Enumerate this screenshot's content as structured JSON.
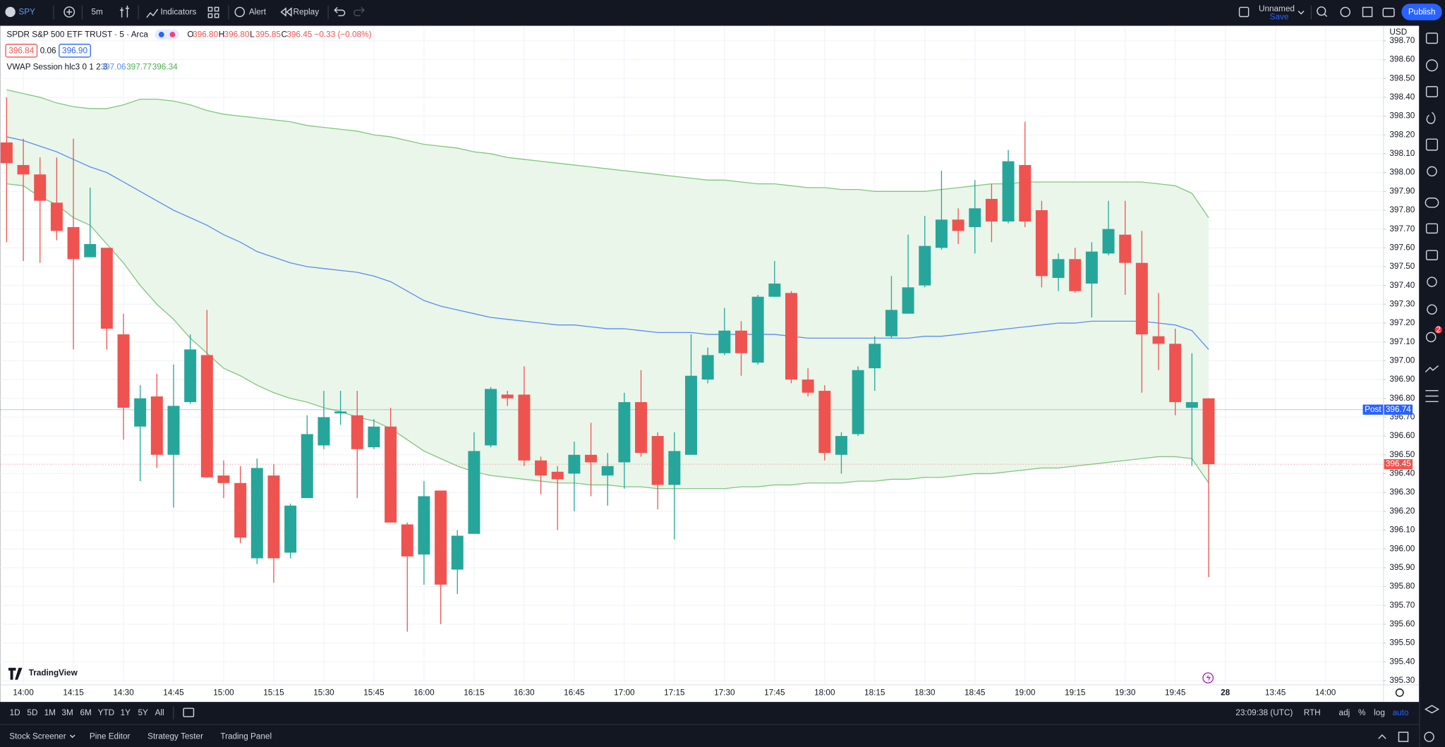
{
  "toolbar": {
    "symbol": "SPY",
    "interval": "5m",
    "indicators": "Indicators",
    "alert": "Alert",
    "replay": "Replay",
    "layout_name": "Unnamed",
    "save": "Save",
    "publish": "Publish"
  },
  "legend": {
    "title": "SPDR S&P 500 ETF TRUST · 5 · Arca",
    "ohlc": [
      {
        "label": "O",
        "value": "396.80"
      },
      {
        "label": "H",
        "value": "396.80"
      },
      {
        "label": "L",
        "value": "395.85"
      },
      {
        "label": "C",
        "value": "396.45"
      }
    ],
    "change": "−0.33 (−0.08%)",
    "bid": "396.84",
    "spread": "0.06",
    "ask": "396.90"
  },
  "indicator": {
    "name": "VWAP Session hlc3 0 1 2 3",
    "values": [
      "397.06",
      "397.77",
      "396.34"
    ]
  },
  "currency": "USD",
  "watermark": "TradingView",
  "notifications": "2",
  "ranges": [
    "1D",
    "5D",
    "1M",
    "3M",
    "6M",
    "YTD",
    "1Y",
    "5Y",
    "All"
  ],
  "status": {
    "clock": "23:09:38 (UTC)",
    "session": "RTH",
    "adj": "adj",
    "percent": "%",
    "log": "log",
    "auto": "auto"
  },
  "bottom_tabs": [
    "Stock Screener",
    "Pine Editor",
    "Strategy Tester",
    "Trading Panel"
  ],
  "chart_data": {
    "type": "candlestick",
    "categories": [
      null,
      "14:00",
      null,
      null,
      "14:15",
      null,
      null,
      "14:30",
      null,
      null,
      "14:45",
      null,
      null,
      "15:00",
      null,
      null,
      "15:15",
      null,
      null,
      "15:30",
      null,
      null,
      "15:45",
      null,
      null,
      "16:00",
      null,
      null,
      "16:15",
      null,
      null,
      "16:30",
      null,
      null,
      "16:45",
      null,
      null,
      "17:00",
      null,
      null,
      "17:15",
      null,
      null,
      "17:30",
      null,
      null,
      "17:45",
      null,
      null,
      "18:00",
      null,
      null,
      "18:15",
      null,
      null,
      "18:30",
      null,
      null,
      "18:45",
      null,
      null,
      "19:00",
      null,
      null,
      "19:15",
      null,
      null,
      "19:30",
      null,
      null,
      "19:45",
      null,
      null,
      "28",
      null,
      null,
      "13:45",
      null,
      null,
      "14:00"
    ],
    "open": [
      398.16,
      398.04,
      397.99,
      397.84,
      397.71,
      397.55,
      397.6,
      397.14,
      396.65,
      396.81,
      396.5,
      396.78,
      397.03,
      396.39,
      396.35,
      395.95,
      396.39,
      395.98,
      396.27,
      396.55,
      396.72,
      396.71,
      396.54,
      396.65,
      396.13,
      395.97,
      396.31,
      395.89,
      396.08,
      396.55,
      396.82,
      396.82,
      396.47,
      396.41,
      396.4,
      396.5,
      396.39,
      396.46,
      396.78,
      396.6,
      396.34,
      396.5,
      396.9,
      397.04,
      397.16,
      396.99,
      397.34,
      397.36,
      396.9,
      396.84,
      396.5,
      396.61,
      396.96,
      397.13,
      397.25,
      397.4,
      397.6,
      397.75,
      397.71,
      397.86,
      397.74,
      398.04,
      397.8,
      397.44,
      397.54,
      397.41,
      397.57,
      397.67,
      397.52,
      397.13,
      397.09,
      396.75,
      396.8,
      null,
      null,
      null,
      null,
      null,
      null,
      null
    ],
    "high": [
      398.4,
      398.18,
      398.08,
      398.08,
      398.18,
      397.92,
      397.6,
      397.25,
      396.87,
      396.93,
      396.98,
      397.14,
      397.27,
      396.47,
      396.44,
      396.48,
      396.45,
      396.24,
      396.71,
      396.84,
      396.84,
      396.84,
      396.69,
      396.75,
      396.14,
      396.36,
      396.31,
      396.1,
      396.62,
      396.86,
      396.84,
      396.97,
      396.49,
      396.44,
      396.57,
      396.67,
      396.51,
      396.83,
      396.95,
      396.62,
      396.62,
      397.14,
      397.07,
      397.28,
      397.21,
      397.35,
      397.53,
      397.37,
      396.96,
      396.87,
      396.62,
      396.97,
      397.13,
      397.45,
      397.67,
      397.77,
      398.01,
      397.81,
      397.96,
      397.94,
      398.12,
      398.27,
      397.85,
      397.57,
      397.6,
      397.63,
      397.85,
      397.85,
      397.69,
      397.36,
      397.17,
      397.04,
      396.8,
      null,
      null,
      null,
      null,
      null,
      null,
      null
    ],
    "low": [
      397.63,
      397.53,
      397.52,
      397.64,
      397.06,
      397.55,
      397.06,
      396.58,
      396.36,
      396.43,
      396.22,
      396.77,
      396.38,
      396.27,
      396.03,
      395.92,
      395.82,
      395.95,
      396.27,
      396.53,
      396.66,
      396.27,
      396.53,
      396.14,
      395.56,
      395.81,
      395.6,
      395.76,
      396.08,
      396.54,
      396.76,
      396.44,
      396.29,
      396.1,
      396.2,
      396.28,
      396.23,
      396.32,
      396.49,
      396.21,
      396.05,
      396.5,
      396.88,
      397.03,
      396.92,
      396.98,
      397.34,
      396.88,
      396.81,
      396.47,
      396.4,
      396.6,
      396.84,
      397.12,
      397.25,
      397.39,
      397.59,
      397.62,
      397.57,
      397.63,
      397.73,
      397.71,
      397.39,
      397.37,
      397.36,
      397.23,
      397.56,
      397.35,
      396.83,
      396.95,
      396.71,
      396.44,
      395.85,
      null,
      null,
      null,
      null,
      null,
      null,
      null
    ],
    "close": [
      398.05,
      397.99,
      397.85,
      397.69,
      397.54,
      397.62,
      397.17,
      396.75,
      396.8,
      396.5,
      396.76,
      397.06,
      396.38,
      396.35,
      396.06,
      396.43,
      395.95,
      396.23,
      396.61,
      396.7,
      396.73,
      396.53,
      396.65,
      396.14,
      395.96,
      396.28,
      395.81,
      396.07,
      396.52,
      396.85,
      396.8,
      396.47,
      396.39,
      396.37,
      396.5,
      396.46,
      396.44,
      396.78,
      396.51,
      396.34,
      396.52,
      396.92,
      397.03,
      397.16,
      397.04,
      397.34,
      397.41,
      396.9,
      396.83,
      396.51,
      396.6,
      396.95,
      397.09,
      397.27,
      397.39,
      397.61,
      397.75,
      397.69,
      397.81,
      397.74,
      398.06,
      397.74,
      397.45,
      397.54,
      397.37,
      397.58,
      397.7,
      397.52,
      397.14,
      397.09,
      396.78,
      396.78,
      396.45,
      null,
      null,
      null,
      null,
      null,
      null,
      null
    ],
    "up_color": "#26a69a",
    "down_color": "#ef5350",
    "overlays": [
      {
        "color": "#5b8def",
        "values": [
          398.19,
          398.17,
          398.14,
          398.11,
          398.07,
          398.03,
          398.0,
          397.95,
          397.9,
          397.85,
          397.8,
          397.76,
          397.72,
          397.67,
          397.63,
          397.58,
          397.55,
          397.52,
          397.5,
          397.49,
          397.48,
          397.47,
          397.45,
          397.42,
          397.37,
          397.32,
          397.29,
          397.27,
          397.25,
          397.23,
          397.22,
          397.21,
          397.2,
          397.19,
          397.19,
          397.18,
          397.17,
          397.17,
          397.16,
          397.15,
          397.15,
          397.15,
          397.14,
          397.14,
          397.14,
          397.14,
          397.14,
          397.13,
          397.12,
          397.12,
          397.12,
          397.12,
          397.12,
          397.12,
          397.12,
          397.13,
          397.13,
          397.14,
          397.15,
          397.16,
          397.17,
          397.18,
          397.19,
          397.2,
          397.2,
          397.21,
          397.21,
          397.21,
          397.21,
          397.2,
          397.19,
          397.16,
          397.06,
          null,
          null,
          null,
          null,
          null,
          null,
          null
        ]
      },
      {
        "color": "#7fc77f",
        "values": [
          398.44,
          398.42,
          398.4,
          398.37,
          398.35,
          398.34,
          398.34,
          398.36,
          398.39,
          398.39,
          398.38,
          398.36,
          398.33,
          398.31,
          398.3,
          398.29,
          398.28,
          398.27,
          398.25,
          398.24,
          398.23,
          398.22,
          398.2,
          398.19,
          398.17,
          398.15,
          398.14,
          398.13,
          398.11,
          398.1,
          398.08,
          398.07,
          398.06,
          398.05,
          398.04,
          398.03,
          398.02,
          398.01,
          398.0,
          397.99,
          397.98,
          397.97,
          397.96,
          397.96,
          397.95,
          397.94,
          397.94,
          397.93,
          397.92,
          397.92,
          397.91,
          397.91,
          397.9,
          397.9,
          397.9,
          397.9,
          397.91,
          397.92,
          397.93,
          397.94,
          397.94,
          397.95,
          397.95,
          397.95,
          397.95,
          397.95,
          397.95,
          397.95,
          397.95,
          397.94,
          397.93,
          397.89,
          397.76,
          null,
          null,
          null,
          null,
          null,
          null,
          null
        ]
      },
      {
        "color": "#7fc77f",
        "values": [
          397.94,
          397.93,
          397.87,
          397.83,
          397.76,
          397.72,
          397.62,
          397.52,
          397.4,
          397.3,
          397.22,
          397.12,
          397.04,
          396.96,
          396.92,
          396.87,
          396.83,
          396.8,
          396.78,
          396.75,
          396.73,
          396.7,
          396.68,
          396.64,
          396.58,
          396.52,
          396.48,
          396.44,
          396.41,
          396.39,
          396.38,
          396.37,
          396.36,
          396.35,
          396.35,
          396.34,
          396.34,
          396.33,
          396.33,
          396.32,
          396.32,
          396.32,
          396.32,
          396.32,
          396.33,
          396.33,
          396.34,
          396.34,
          396.35,
          396.35,
          396.35,
          396.36,
          396.36,
          396.37,
          396.37,
          396.38,
          396.38,
          396.39,
          396.4,
          396.4,
          396.41,
          396.42,
          396.43,
          396.43,
          396.44,
          396.45,
          396.46,
          396.47,
          396.48,
          396.49,
          396.49,
          396.48,
          396.35,
          null,
          null,
          null,
          null,
          null,
          null,
          null
        ]
      }
    ],
    "band_fill": "#eaf6ea",
    "post_label": "Post",
    "post_price": 396.74,
    "last_price": 396.45,
    "ylim": [
      395.28,
      398.78
    ],
    "yticks": [
      {
        "value": 395.3,
        "label": "395.30"
      },
      {
        "value": 395.4,
        "label": "395.40"
      },
      {
        "value": 395.5,
        "label": "395.50"
      },
      {
        "value": 395.6,
        "label": "395.60"
      },
      {
        "value": 395.7,
        "label": "395.70"
      },
      {
        "value": 395.8,
        "label": "395.80"
      },
      {
        "value": 395.9,
        "label": "395.90"
      },
      {
        "value": 396.0,
        "label": "396.00"
      },
      {
        "value": 396.1,
        "label": "396.10"
      },
      {
        "value": 396.2,
        "label": "396.20"
      },
      {
        "value": 396.3,
        "label": "396.30"
      },
      {
        "value": 396.4,
        "label": "396.40"
      },
      {
        "value": 396.5,
        "label": "396.50"
      },
      {
        "value": 396.6,
        "label": "396.60"
      },
      {
        "value": 396.7,
        "label": "396.70"
      },
      {
        "value": 396.8,
        "label": "396.80"
      },
      {
        "value": 396.9,
        "label": "396.90"
      },
      {
        "value": 397.0,
        "label": "397.00"
      },
      {
        "value": 397.1,
        "label": "397.10"
      },
      {
        "value": 397.2,
        "label": "397.20"
      },
      {
        "value": 397.3,
        "label": "397.30"
      },
      {
        "value": 397.4,
        "label": "397.40"
      },
      {
        "value": 397.5,
        "label": "397.50"
      },
      {
        "value": 397.6,
        "label": "397.60"
      },
      {
        "value": 397.7,
        "label": "397.70"
      },
      {
        "value": 397.8,
        "label": "397.80"
      },
      {
        "value": 397.9,
        "label": "397.90"
      },
      {
        "value": 398.0,
        "label": "398.00"
      },
      {
        "value": 398.1,
        "label": "398.10"
      },
      {
        "value": 398.2,
        "label": "398.20"
      },
      {
        "value": 398.3,
        "label": "398.30"
      },
      {
        "value": 398.4,
        "label": "398.40"
      },
      {
        "value": 398.5,
        "label": "398.50"
      },
      {
        "value": 398.6,
        "label": "398.60"
      },
      {
        "value": 398.7,
        "label": "398.70"
      }
    ],
    "grid": true
  }
}
